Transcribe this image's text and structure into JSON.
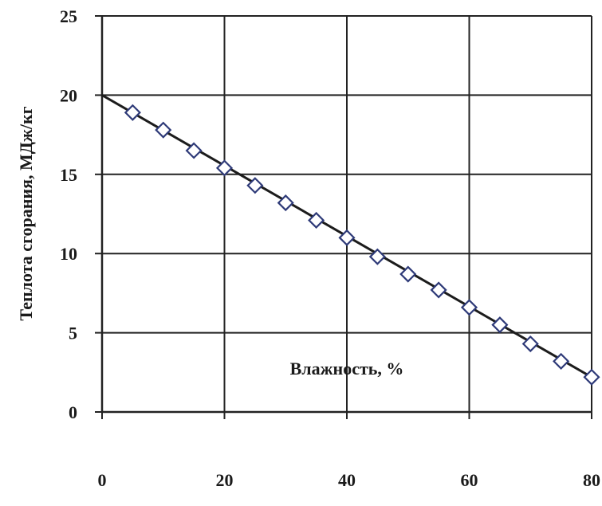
{
  "chart_data": {
    "type": "scatter",
    "title": "",
    "xlabel": "Влажность, %",
    "ylabel": "Теплота сгорания, МДж/кг",
    "xlim": [
      0,
      80
    ],
    "ylim": [
      0,
      25
    ],
    "xticks": [
      0,
      20,
      40,
      60,
      80
    ],
    "yticks": [
      0,
      5,
      10,
      15,
      20,
      25
    ],
    "grid": true,
    "series": [
      {
        "marker": "diamond-open",
        "color": "#2e3a78",
        "points": [
          {
            "x": 5,
            "y": 18.9
          },
          {
            "x": 10,
            "y": 17.8
          },
          {
            "x": 15,
            "y": 16.5
          },
          {
            "x": 20,
            "y": 15.4
          },
          {
            "x": 25,
            "y": 14.3
          },
          {
            "x": 30,
            "y": 13.2
          },
          {
            "x": 35,
            "y": 12.1
          },
          {
            "x": 40,
            "y": 11.0
          },
          {
            "x": 45,
            "y": 9.8
          },
          {
            "x": 50,
            "y": 8.7
          },
          {
            "x": 55,
            "y": 7.7
          },
          {
            "x": 60,
            "y": 6.6
          },
          {
            "x": 65,
            "y": 5.5
          },
          {
            "x": 70,
            "y": 4.3
          },
          {
            "x": 75,
            "y": 3.2
          },
          {
            "x": 80,
            "y": 2.2
          }
        ]
      }
    ],
    "trendline": {
      "color": "#1c1c1c",
      "points": [
        {
          "x": 0,
          "y": 20.0
        },
        {
          "x": 80,
          "y": 2.2
        }
      ]
    }
  }
}
